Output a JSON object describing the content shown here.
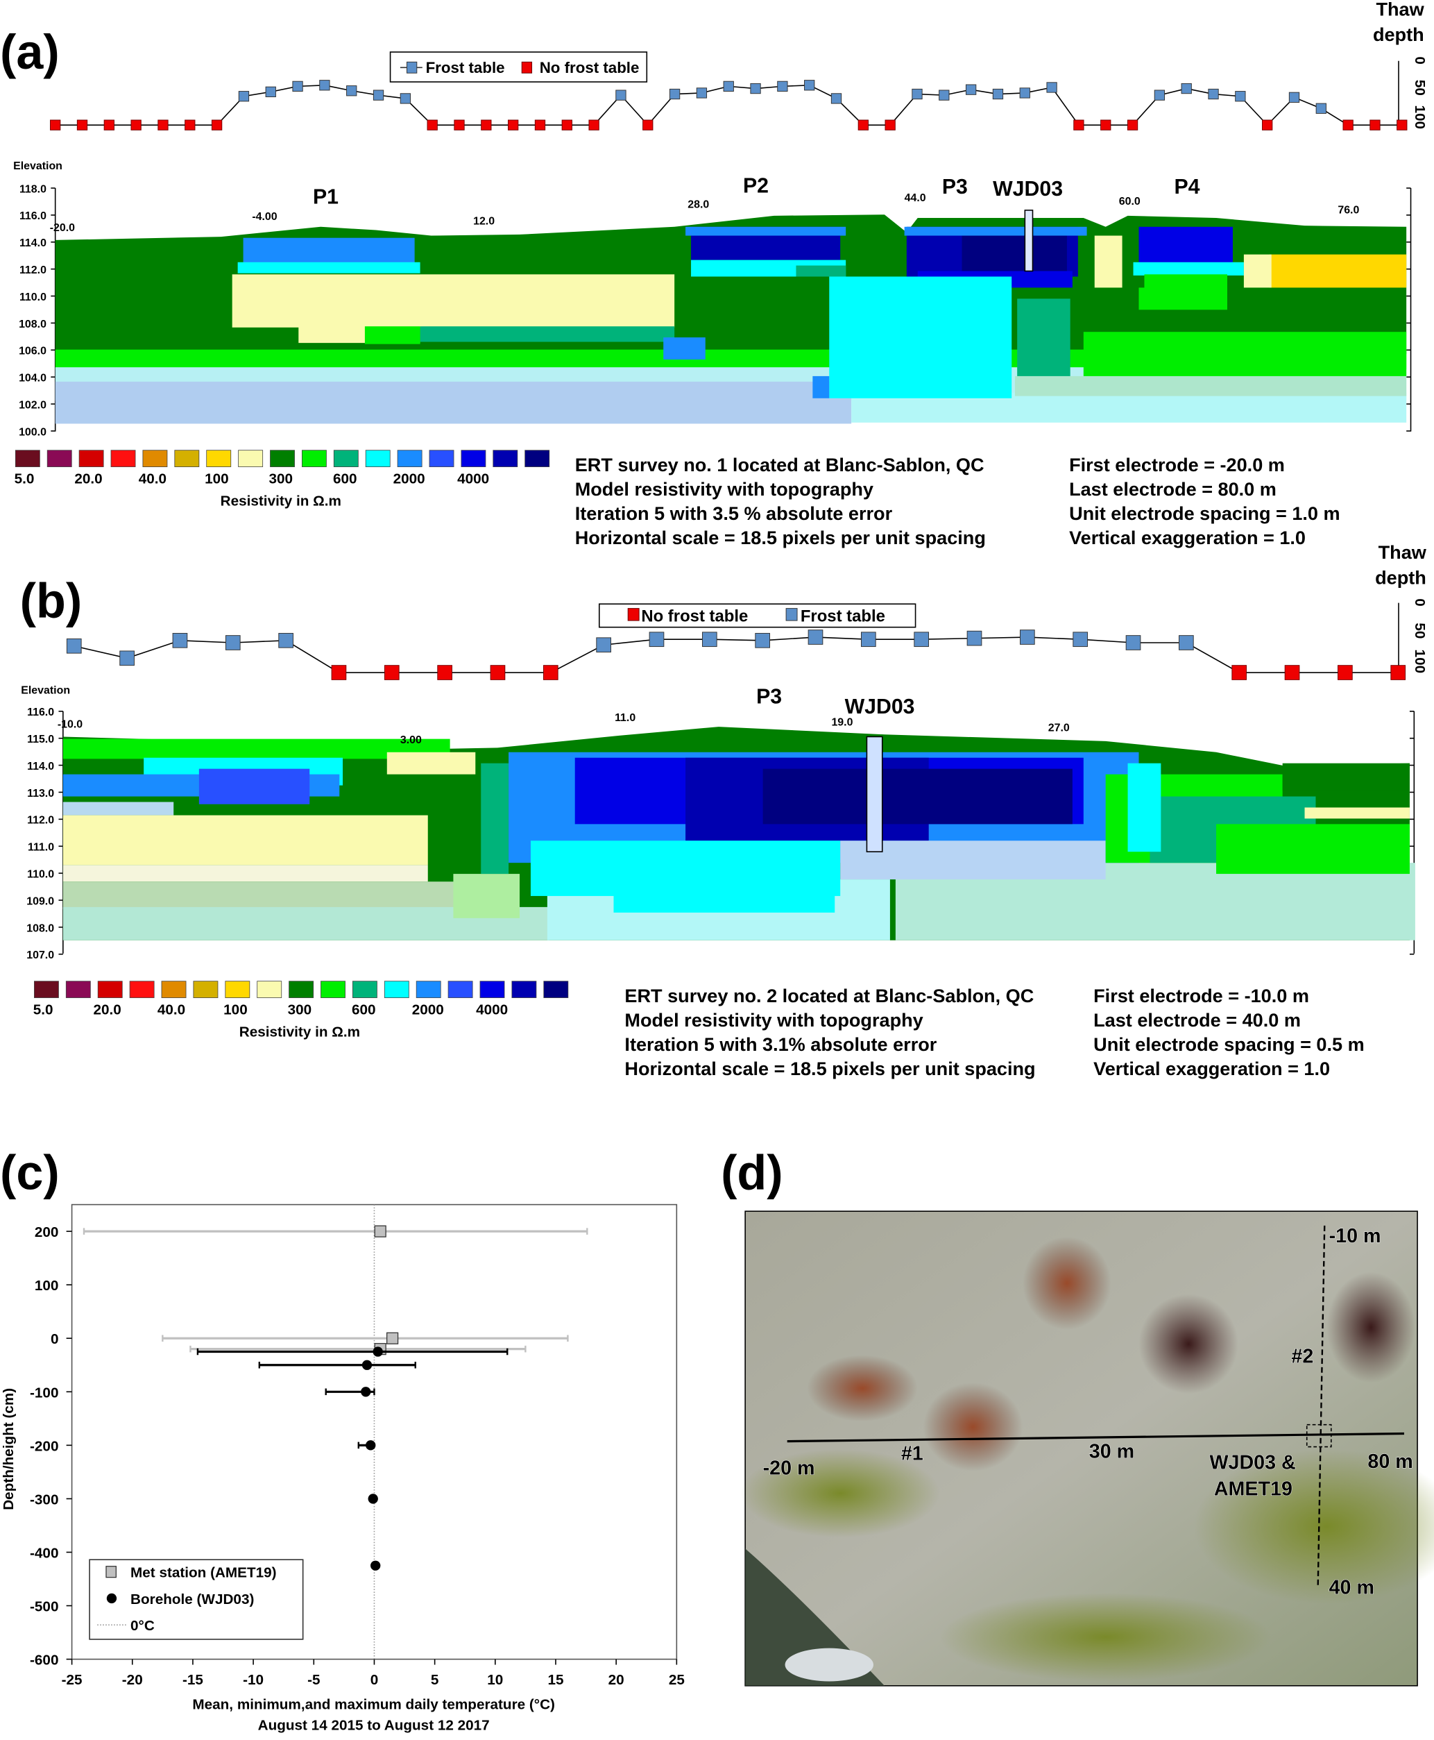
{
  "panel_labels": {
    "a": "(a)",
    "b": "(b)",
    "c": "(c)",
    "d": "(d)"
  },
  "thaw_axis": {
    "title_line1": "Thaw",
    "title_line2": "depth",
    "ticks": [
      "0",
      "50",
      "100"
    ]
  },
  "colorbar": {
    "colors": [
      "#6a0d1f",
      "#8a0a55",
      "#d40000",
      "#ff1010",
      "#e08a00",
      "#d4b000",
      "#ffd800",
      "#fafab0",
      "#007f00",
      "#00ee00",
      "#00b37a",
      "#00ffff",
      "#1a8cff",
      "#2850ff",
      "#0000e6",
      "#0000b0",
      "#000080"
    ],
    "labels": [
      "5.0",
      "20.0",
      "40.0",
      "100",
      "300",
      "600",
      "2000",
      "4000"
    ],
    "title": "Resistivity in Ω.m"
  },
  "panel_a": {
    "legend": {
      "frost": "Frost table",
      "nofrost": "No frost table"
    },
    "elevation_label": "Elevation",
    "y_ticks": [
      "118.0",
      "116.0",
      "114.0",
      "112.0",
      "110.0",
      "108.0",
      "106.0",
      "104.0",
      "102.0",
      "100.0"
    ],
    "x_ticks": [
      "-20.0",
      "-4.00",
      "12.0",
      "28.0",
      "44.0",
      "60.0",
      "76.0"
    ],
    "annotations": [
      "P1",
      "P2",
      "P3",
      "WJD03",
      "P4"
    ],
    "info_left": [
      "ERT survey no. 1 located at Blanc-Sablon, QC",
      "Model resistivity with topography",
      "Iteration 5 with 3.5 % absolute error",
      "Horizontal scale = 18.5 pixels per unit spacing"
    ],
    "info_right": [
      "First electrode = -20.0 m",
      "Last electrode = 80.0 m",
      "Unit electrode spacing = 1.0 m",
      "Vertical exaggeration = 1.0"
    ],
    "thaw_depth_cm": [
      null,
      null,
      null,
      null,
      null,
      null,
      null,
      64,
      56,
      46,
      44,
      54,
      62,
      68,
      null,
      null,
      null,
      null,
      null,
      null,
      null,
      62,
      null,
      60,
      58,
      46,
      50,
      46,
      44,
      68,
      null,
      null,
      60,
      62,
      52,
      60,
      58,
      48,
      null,
      null,
      null,
      62,
      50,
      60,
      64,
      null,
      66,
      86,
      null,
      null,
      null
    ]
  },
  "panel_b": {
    "legend": {
      "nofrost": "No frost table",
      "frost": "Frost table"
    },
    "elevation_label": "Elevation",
    "y_ticks": [
      "116.0",
      "115.0",
      "114.0",
      "113.0",
      "112.0",
      "111.0",
      "110.0",
      "109.0",
      "108.0",
      "107.0"
    ],
    "x_ticks": [
      "-10.0",
      "3.00",
      "11.0",
      "19.0",
      "27.0"
    ],
    "annotations": [
      "P3",
      "WJD03"
    ],
    "info_left": [
      "ERT survey no. 2 located at Blanc-Sablon, QC",
      "Model resistivity with topography",
      "Iteration 5 with 3.1% absolute error",
      "Horizontal scale = 18.5 pixels per unit spacing"
    ],
    "info_right": [
      "First electrode = -10.0 m",
      "Last electrode = 40.0 m",
      "Unit electrode spacing = 0.5 m",
      "Vertical exaggeration = 1.0"
    ],
    "thaw_depth_cm": [
      78,
      100,
      68,
      72,
      68,
      null,
      null,
      null,
      null,
      null,
      76,
      66,
      66,
      68,
      62,
      66,
      66,
      64,
      62,
      66,
      72,
      72,
      null,
      null,
      null,
      null
    ]
  },
  "chart_data": {
    "type": "scatter",
    "title": "",
    "xlabel": "Mean, minimum,and maximum daily temperature (°C)",
    "xlabel2": "August 14  2015 to August 12  2017",
    "ylabel": "Depth/height (cm)",
    "xlim": [
      -25,
      25
    ],
    "ylim": [
      -600,
      250
    ],
    "x_ticks": [
      "-25",
      "-20",
      "-15",
      "-10",
      "-5",
      "0",
      "5",
      "10",
      "15",
      "20",
      "25"
    ],
    "y_ticks": [
      "200",
      "100",
      "0",
      "-100",
      "-200",
      "-300",
      "-400",
      "-500",
      "-600"
    ],
    "legend_position": "bottom-left",
    "series": [
      {
        "name": "Met station (AMET19)",
        "marker": "square",
        "color": "#c0c0c0",
        "points": [
          {
            "y": 200,
            "mean": 0.5,
            "min": -24,
            "max": 17.6
          },
          {
            "y": 0,
            "mean": 1.5,
            "min": -17.5,
            "max": 16
          },
          {
            "y": -20,
            "mean": 0.5,
            "min": -15.2,
            "max": 12.5
          }
        ]
      },
      {
        "name": "Borehole (WJD03)",
        "marker": "circle",
        "color": "#000000",
        "points": [
          {
            "y": -25,
            "mean": 0.3,
            "min": -14.6,
            "max": 11
          },
          {
            "y": -50,
            "mean": -0.6,
            "min": -9.5,
            "max": 3.4
          },
          {
            "y": -100,
            "mean": -0.7,
            "min": -4,
            "max": 0
          },
          {
            "y": -200,
            "mean": -0.3,
            "min": -1.3,
            "max": -0.2
          },
          {
            "y": -300,
            "mean": -0.1,
            "min": -0.1,
            "max": -0.1
          },
          {
            "y": -425,
            "mean": 0.1,
            "min": 0.1,
            "max": 0.1
          }
        ]
      },
      {
        "name": "0°C",
        "marker": "dotted-line",
        "color": "#999999"
      }
    ]
  },
  "panel_d": {
    "labels": [
      "-10 m",
      "#2",
      "-20 m",
      "#1",
      "30 m",
      "WJD03 &",
      "AMET19",
      "80 m",
      "40 m"
    ]
  }
}
